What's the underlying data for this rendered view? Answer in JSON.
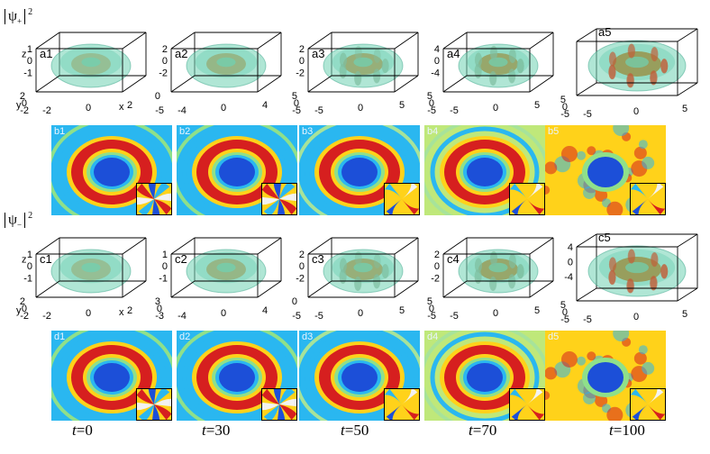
{
  "row_labels": {
    "top": {
      "symbol": "ψ",
      "sub": "+",
      "sup": "2"
    },
    "bottom": {
      "symbol": "ψ",
      "sub": "−",
      "sup": "2"
    }
  },
  "panels_3d": {
    "a": [
      {
        "label": "a1",
        "z_ticks": [
          "1",
          "0",
          "-1"
        ],
        "y_ticks": [
          "2",
          "0",
          "-2"
        ],
        "x_ticks": [
          "-2",
          "0",
          "2"
        ],
        "axis_z": "z",
        "axis_y": "y",
        "axis_x": "x"
      },
      {
        "label": "a2",
        "z_ticks": [
          "2",
          "0",
          "-2"
        ],
        "y_ticks": [
          "0",
          "-5"
        ],
        "x_ticks": [
          "-4",
          "0",
          "4"
        ]
      },
      {
        "label": "a3",
        "z_ticks": [
          "2",
          "0",
          "-2"
        ],
        "y_ticks": [
          "5",
          "0",
          "-5"
        ],
        "x_ticks": [
          "-5",
          "0",
          "5"
        ]
      },
      {
        "label": "a4",
        "z_ticks": [
          "4",
          "0",
          "-4"
        ],
        "y_ticks": [
          "5",
          "0",
          "-5"
        ],
        "x_ticks": [
          "-5",
          "0",
          "5"
        ]
      },
      {
        "label": "a5",
        "z_ticks": [],
        "y_ticks": [
          "5",
          "0",
          "-5"
        ],
        "x_ticks": [
          "-5",
          "0",
          "5"
        ]
      }
    ],
    "c": [
      {
        "label": "c1",
        "z_ticks": [
          "1",
          "0",
          "-1"
        ],
        "y_ticks": [
          "2",
          "0",
          "-2"
        ],
        "x_ticks": [
          "-2",
          "0",
          "2"
        ],
        "axis_z": "z",
        "axis_y": "y",
        "axis_x": "x"
      },
      {
        "label": "c2",
        "z_ticks": [
          "1",
          "0",
          "-1"
        ],
        "y_ticks": [
          "3",
          "0",
          "-3"
        ],
        "x_ticks": [
          "-4",
          "0",
          "4"
        ]
      },
      {
        "label": "c3",
        "z_ticks": [
          "2",
          "0",
          "-2"
        ],
        "y_ticks": [
          "0",
          "-5"
        ],
        "x_ticks": [
          "-5",
          "0",
          "5"
        ]
      },
      {
        "label": "c4",
        "z_ticks": [
          "2",
          "0",
          "-2"
        ],
        "y_ticks": [
          "5",
          "0",
          "-5"
        ],
        "x_ticks": [
          "-5",
          "0",
          "5"
        ]
      },
      {
        "label": "c5",
        "z_ticks": [
          "4",
          "0",
          "-4"
        ],
        "y_ticks": [
          "5",
          "0",
          "-5"
        ],
        "x_ticks": [
          "-5",
          "0",
          "5"
        ]
      }
    ]
  },
  "panels_2d": {
    "b": [
      "b1",
      "b2",
      "b3",
      "b4",
      "b5"
    ],
    "d": [
      "d1",
      "d2",
      "d3",
      "d4",
      "d5"
    ]
  },
  "time_labels": [
    {
      "var": "t",
      "val": "=0"
    },
    {
      "var": "t",
      "val": "=30"
    },
    {
      "var": "t",
      "val": "=50"
    },
    {
      "var": "t",
      "val": "=70"
    },
    {
      "var": "t",
      "val": "=100"
    }
  ],
  "colors": {
    "hot": "#d61f1f",
    "warm": "#ffd21a",
    "mid": "#8fe08a",
    "cool": "#2ab7f0",
    "cold": "#1c4fd8",
    "iso_surface": "#6fd1b3",
    "core": "#9a8a3a"
  }
}
